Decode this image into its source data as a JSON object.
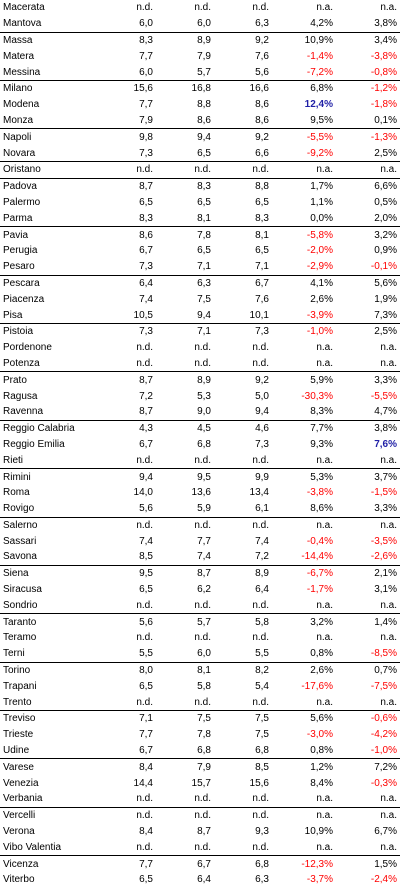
{
  "colors": {
    "negative": "#ff0000",
    "highlight": "#1f1fa6",
    "text": "#000000"
  },
  "rows": [
    {
      "city": "Macerata",
      "v1": "n.d.",
      "v2": "n.d.",
      "v3": "n.d.",
      "p1": "n.a.",
      "p2": "n.a.",
      "sep": false
    },
    {
      "city": "Mantova",
      "v1": "6,0",
      "v2": "6,0",
      "v3": "6,3",
      "p1": "4,2%",
      "p2": "3,8%",
      "sep": false
    },
    {
      "city": "Massa",
      "v1": "8,3",
      "v2": "8,9",
      "v3": "9,2",
      "p1": "10,9%",
      "p2": "3,4%",
      "sep": true
    },
    {
      "city": "Matera",
      "v1": "7,7",
      "v2": "7,9",
      "v3": "7,6",
      "p1": "-1,4%",
      "p2": "-3,8%",
      "sep": false
    },
    {
      "city": "Messina",
      "v1": "6,0",
      "v2": "5,7",
      "v3": "5,6",
      "p1": "-7,2%",
      "p2": "-0,8%",
      "sep": false
    },
    {
      "city": "Milano",
      "v1": "15,6",
      "v2": "16,8",
      "v3": "16,6",
      "p1": "6,8%",
      "p2": "-1,2%",
      "sep": true
    },
    {
      "city": "Modena",
      "v1": "7,7",
      "v2": "8,8",
      "v3": "8,6",
      "p1": "12,4%",
      "p2": "-1,8%",
      "sep": false,
      "hl1": true
    },
    {
      "city": "Monza",
      "v1": "7,9",
      "v2": "8,6",
      "v3": "8,6",
      "p1": "9,5%",
      "p2": "0,1%",
      "sep": false
    },
    {
      "city": "Napoli",
      "v1": "9,8",
      "v2": "9,4",
      "v3": "9,2",
      "p1": "-5,5%",
      "p2": "-1,3%",
      "sep": true
    },
    {
      "city": "Novara",
      "v1": "7,3",
      "v2": "6,5",
      "v3": "6,6",
      "p1": "-9,2%",
      "p2": "2,5%",
      "sep": false
    },
    {
      "city": "Oristano",
      "v1": "n.d.",
      "v2": "n.d.",
      "v3": "n.d.",
      "p1": "n.a.",
      "p2": "n.a.",
      "sep": true
    },
    {
      "city": "Padova",
      "v1": "8,7",
      "v2": "8,3",
      "v3": "8,8",
      "p1": "1,7%",
      "p2": "6,6%",
      "sep": true
    },
    {
      "city": "Palermo",
      "v1": "6,5",
      "v2": "6,5",
      "v3": "6,5",
      "p1": "1,1%",
      "p2": "0,5%",
      "sep": false
    },
    {
      "city": "Parma",
      "v1": "8,3",
      "v2": "8,1",
      "v3": "8,3",
      "p1": "0,0%",
      "p2": "2,0%",
      "sep": false
    },
    {
      "city": "Pavia",
      "v1": "8,6",
      "v2": "7,8",
      "v3": "8,1",
      "p1": "-5,8%",
      "p2": "3,2%",
      "sep": true
    },
    {
      "city": "Perugia",
      "v1": "6,7",
      "v2": "6,5",
      "v3": "6,5",
      "p1": "-2,0%",
      "p2": "0,9%",
      "sep": false
    },
    {
      "city": "Pesaro",
      "v1": "7,3",
      "v2": "7,1",
      "v3": "7,1",
      "p1": "-2,9%",
      "p2": "-0,1%",
      "sep": false
    },
    {
      "city": "Pescara",
      "v1": "6,4",
      "v2": "6,3",
      "v3": "6,7",
      "p1": "4,1%",
      "p2": "5,6%",
      "sep": true
    },
    {
      "city": "Piacenza",
      "v1": "7,4",
      "v2": "7,5",
      "v3": "7,6",
      "p1": "2,6%",
      "p2": "1,9%",
      "sep": false
    },
    {
      "city": "Pisa",
      "v1": "10,5",
      "v2": "9,4",
      "v3": "10,1",
      "p1": "-3,9%",
      "p2": "7,3%",
      "sep": false
    },
    {
      "city": "Pistoia",
      "v1": "7,3",
      "v2": "7,1",
      "v3": "7,3",
      "p1": "-1,0%",
      "p2": "2,5%",
      "sep": true
    },
    {
      "city": "Pordenone",
      "v1": "n.d.",
      "v2": "n.d.",
      "v3": "n.d.",
      "p1": "n.a.",
      "p2": "n.a.",
      "sep": false
    },
    {
      "city": "Potenza",
      "v1": "n.d.",
      "v2": "n.d.",
      "v3": "n.d.",
      "p1": "n.a.",
      "p2": "n.a.",
      "sep": false
    },
    {
      "city": "Prato",
      "v1": "8,7",
      "v2": "8,9",
      "v3": "9,2",
      "p1": "5,9%",
      "p2": "3,3%",
      "sep": true
    },
    {
      "city": "Ragusa",
      "v1": "7,2",
      "v2": "5,3",
      "v3": "5,0",
      "p1": "-30,3%",
      "p2": "-5,5%",
      "sep": false
    },
    {
      "city": "Ravenna",
      "v1": "8,7",
      "v2": "9,0",
      "v3": "9,4",
      "p1": "8,3%",
      "p2": "4,7%",
      "sep": false
    },
    {
      "city": "Reggio Calabria",
      "v1": "4,3",
      "v2": "4,5",
      "v3": "4,6",
      "p1": "7,7%",
      "p2": "3,8%",
      "sep": true
    },
    {
      "city": "Reggio Emilia",
      "v1": "6,7",
      "v2": "6,8",
      "v3": "7,3",
      "p1": "9,3%",
      "p2": "7,6%",
      "sep": false,
      "hl2": true
    },
    {
      "city": "Rieti",
      "v1": "n.d.",
      "v2": "n.d.",
      "v3": "n.d.",
      "p1": "n.a.",
      "p2": "n.a.",
      "sep": false
    },
    {
      "city": "Rimini",
      "v1": "9,4",
      "v2": "9,5",
      "v3": "9,9",
      "p1": "5,3%",
      "p2": "3,7%",
      "sep": true
    },
    {
      "city": "Roma",
      "v1": "14,0",
      "v2": "13,6",
      "v3": "13,4",
      "p1": "-3,8%",
      "p2": "-1,5%",
      "sep": false
    },
    {
      "city": "Rovigo",
      "v1": "5,6",
      "v2": "5,9",
      "v3": "6,1",
      "p1": "8,6%",
      "p2": "3,3%",
      "sep": false
    },
    {
      "city": "Salerno",
      "v1": "n.d.",
      "v2": "n.d.",
      "v3": "n.d.",
      "p1": "n.a.",
      "p2": "n.a.",
      "sep": true
    },
    {
      "city": "Sassari",
      "v1": "7,4",
      "v2": "7,7",
      "v3": "7,4",
      "p1": "-0,4%",
      "p2": "-3,5%",
      "sep": false
    },
    {
      "city": "Savona",
      "v1": "8,5",
      "v2": "7,4",
      "v3": "7,2",
      "p1": "-14,4%",
      "p2": "-2,6%",
      "sep": false
    },
    {
      "city": "Siena",
      "v1": "9,5",
      "v2": "8,7",
      "v3": "8,9",
      "p1": "-6,7%",
      "p2": "2,1%",
      "sep": true
    },
    {
      "city": "Siracusa",
      "v1": "6,5",
      "v2": "6,2",
      "v3": "6,4",
      "p1": "-1,7%",
      "p2": "3,1%",
      "sep": false
    },
    {
      "city": "Sondrio",
      "v1": "n.d.",
      "v2": "n.d.",
      "v3": "n.d.",
      "p1": "n.a.",
      "p2": "n.a.",
      "sep": false
    },
    {
      "city": "Taranto",
      "v1": "5,6",
      "v2": "5,7",
      "v3": "5,8",
      "p1": "3,2%",
      "p2": "1,4%",
      "sep": true
    },
    {
      "city": "Teramo",
      "v1": "n.d.",
      "v2": "n.d.",
      "v3": "n.d.",
      "p1": "n.a.",
      "p2": "n.a.",
      "sep": false
    },
    {
      "city": "Terni",
      "v1": "5,5",
      "v2": "6,0",
      "v3": "5,5",
      "p1": "0,8%",
      "p2": "-8,5%",
      "sep": false
    },
    {
      "city": "Torino",
      "v1": "8,0",
      "v2": "8,1",
      "v3": "8,2",
      "p1": "2,6%",
      "p2": "0,7%",
      "sep": true
    },
    {
      "city": "Trapani",
      "v1": "6,5",
      "v2": "5,8",
      "v3": "5,4",
      "p1": "-17,6%",
      "p2": "-7,5%",
      "sep": false
    },
    {
      "city": "Trento",
      "v1": "n.d.",
      "v2": "n.d.",
      "v3": "n.d.",
      "p1": "n.a.",
      "p2": "n.a.",
      "sep": false
    },
    {
      "city": "Treviso",
      "v1": "7,1",
      "v2": "7,5",
      "v3": "7,5",
      "p1": "5,6%",
      "p2": "-0,6%",
      "sep": true
    },
    {
      "city": "Trieste",
      "v1": "7,7",
      "v2": "7,8",
      "v3": "7,5",
      "p1": "-3,0%",
      "p2": "-4,2%",
      "sep": false
    },
    {
      "city": "Udine",
      "v1": "6,7",
      "v2": "6,8",
      "v3": "6,8",
      "p1": "0,8%",
      "p2": "-1,0%",
      "sep": false
    },
    {
      "city": "Varese",
      "v1": "8,4",
      "v2": "7,9",
      "v3": "8,5",
      "p1": "1,2%",
      "p2": "7,2%",
      "sep": true
    },
    {
      "city": "Venezia",
      "v1": "14,4",
      "v2": "15,7",
      "v3": "15,6",
      "p1": "8,4%",
      "p2": "-0,3%",
      "sep": false
    },
    {
      "city": "Verbania",
      "v1": "n.d.",
      "v2": "n.d.",
      "v3": "n.d.",
      "p1": "n.a.",
      "p2": "n.a.",
      "sep": false
    },
    {
      "city": "Vercelli",
      "v1": "n.d.",
      "v2": "n.d.",
      "v3": "n.d.",
      "p1": "n.a.",
      "p2": "n.a.",
      "sep": true
    },
    {
      "city": "Verona",
      "v1": "8,4",
      "v2": "8,7",
      "v3": "9,3",
      "p1": "10,9%",
      "p2": "6,7%",
      "sep": false
    },
    {
      "city": "Vibo Valentia",
      "v1": "n.d.",
      "v2": "n.d.",
      "v3": "n.d.",
      "p1": "n.a.",
      "p2": "n.a.",
      "sep": false
    },
    {
      "city": "Vicenza",
      "v1": "7,7",
      "v2": "6,7",
      "v3": "6,8",
      "p1": "-12,3%",
      "p2": "1,5%",
      "sep": true
    },
    {
      "city": "Viterbo",
      "v1": "6,5",
      "v2": "6,4",
      "v3": "6,3",
      "p1": "-3,7%",
      "p2": "-2,4%",
      "sep": false
    }
  ]
}
